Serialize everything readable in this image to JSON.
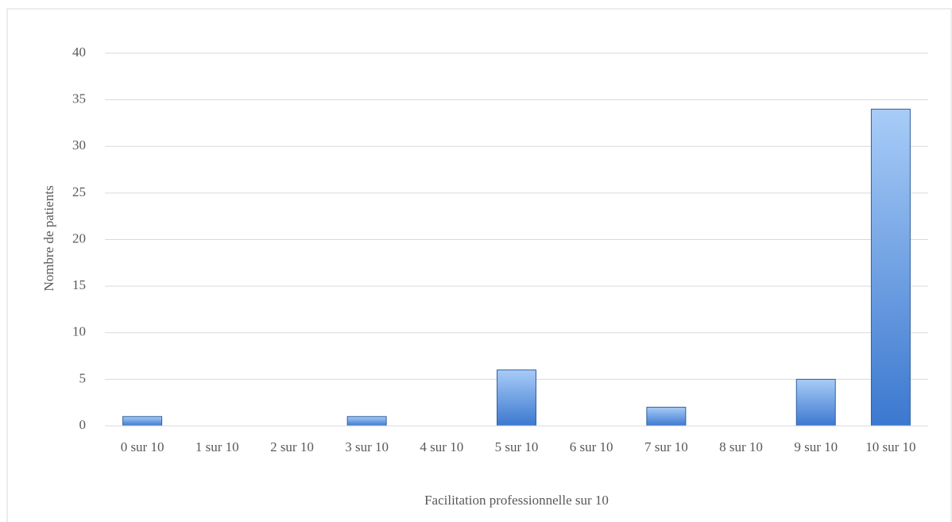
{
  "chart_data": {
    "type": "bar",
    "x_label": "Facilitation professionnelle sur 10",
    "y_label": "Nombre de patients",
    "categories": [
      "0 sur 10",
      "1 sur 10",
      "2 sur 10",
      "3 sur 10",
      "4 sur 10",
      "5 sur 10",
      "6 sur 10",
      "7 sur 10",
      "8 sur 10",
      "9 sur 10",
      "10 sur 10"
    ],
    "values": [
      1,
      0,
      0,
      1,
      0,
      6,
      0,
      2,
      0,
      5,
      34
    ],
    "color": "#4f8ad8",
    "ylim": [
      0,
      40
    ],
    "yticks": [
      0,
      5,
      10,
      15,
      20,
      25,
      30,
      35,
      40
    ],
    "grid": true
  }
}
